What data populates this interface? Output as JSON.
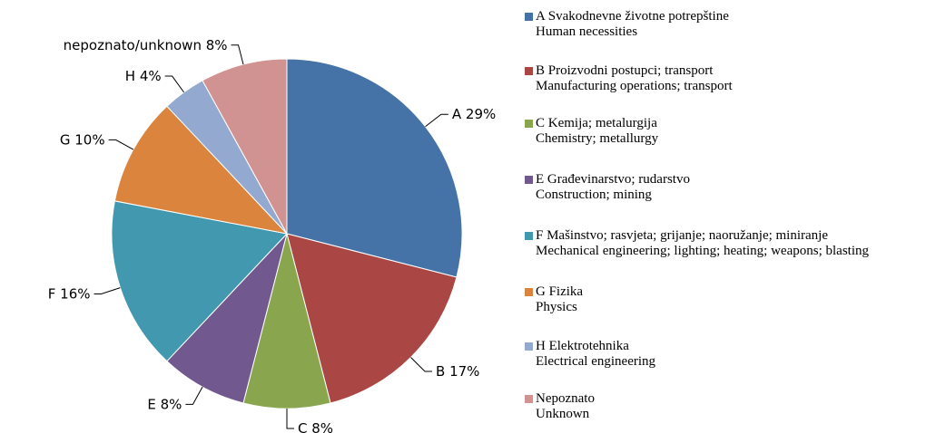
{
  "chart_data": {
    "type": "pie",
    "categories": [
      "A",
      "B",
      "C",
      "E",
      "F",
      "G",
      "H",
      "nepoznato/unknown"
    ],
    "values": [
      29,
      17,
      8,
      8,
      16,
      10,
      4,
      8
    ],
    "value_labels": [
      "29%",
      "17%",
      "8%",
      "8%",
      "16%",
      "10%",
      "4%",
      "8%"
    ],
    "colors": [
      "#4572a7",
      "#aa4643",
      "#89a54e",
      "#71588f",
      "#4198af",
      "#db843d",
      "#93a9cf",
      "#d19392"
    ],
    "legend": [
      {
        "name": "A   Svakodnevne životne potrepštine",
        "translation": "Human necessities"
      },
      {
        "name": "B   Proizvodni postupci; transport",
        "translation": "Manufacturing operations; transport"
      },
      {
        "name": "C   Kemija; metalurgija",
        "translation": "Chemistry; metallurgy"
      },
      {
        "name": "E   Građevinarstvo; rudarstvo",
        "translation": "Construction; mining"
      },
      {
        "name": "F   Mašinstvo; rasvjeta; grijanje; naoružanje; miniranje",
        "translation": "Mechanical engineering; lighting; heating; weapons; blasting"
      },
      {
        "name": "G   Fizika",
        "translation": "Physics"
      },
      {
        "name": "H   Elektrotehnika",
        "translation": "Electrical engineering"
      },
      {
        "name": "Nepoznato",
        "translation": "Unknown"
      }
    ]
  }
}
